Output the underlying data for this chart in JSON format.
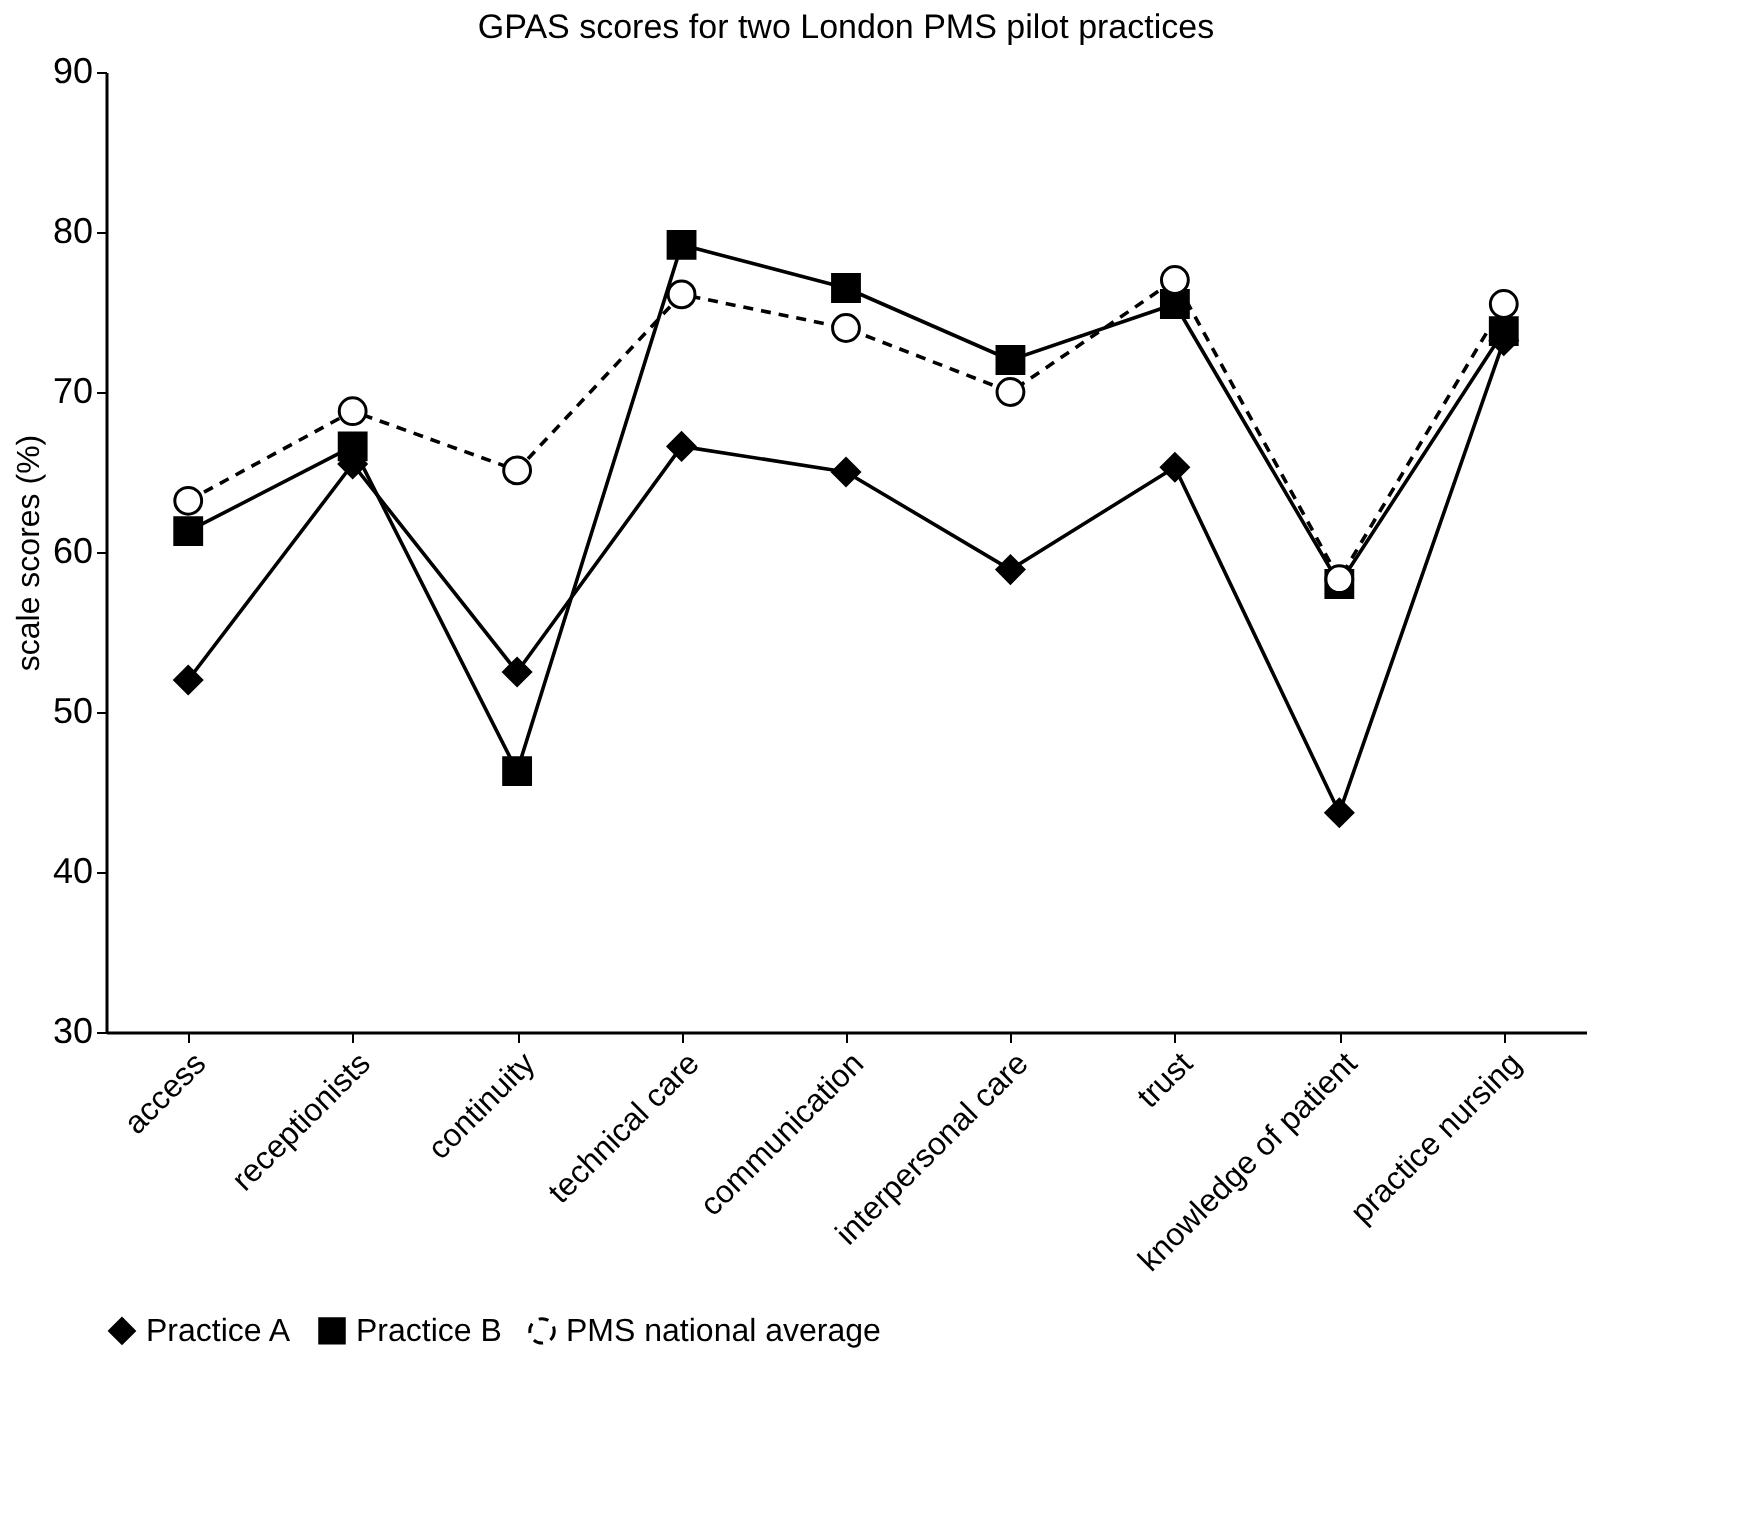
{
  "chart_data": {
    "type": "line",
    "title": "GPAS scores for two London PMS pilot practices",
    "ylabel": "scale scores (%)",
    "categories": [
      "access",
      "receptionists",
      "continuity",
      "technical care",
      "communication",
      "interpersonal care",
      "trust",
      "knowledge of patient",
      "practice nursing"
    ],
    "series": [
      {
        "name": "Practice A",
        "color": "#000000",
        "marker": "diamond",
        "line_style": "solid",
        "values": [
          52.0,
          65.5,
          52.5,
          66.6,
          65.0,
          58.9,
          65.3,
          43.7,
          73.2
        ]
      },
      {
        "name": "Practice B",
        "color": "#000000",
        "marker": "square",
        "line_style": "solid",
        "values": [
          61.3,
          66.6,
          46.3,
          79.2,
          76.5,
          72.0,
          75.5,
          58.0,
          73.8
        ]
      },
      {
        "name": "PMS national average",
        "color": "#000000",
        "marker": "circle",
        "line_style": "dashed",
        "values": [
          63.2,
          68.8,
          65.1,
          76.1,
          74.0,
          70.0,
          77.0,
          58.3,
          75.5
        ]
      }
    ],
    "ylim": [
      30,
      90
    ],
    "yticks": [
      30,
      40,
      50,
      60,
      70,
      80,
      90
    ],
    "grid": false,
    "legend": "bottom"
  }
}
